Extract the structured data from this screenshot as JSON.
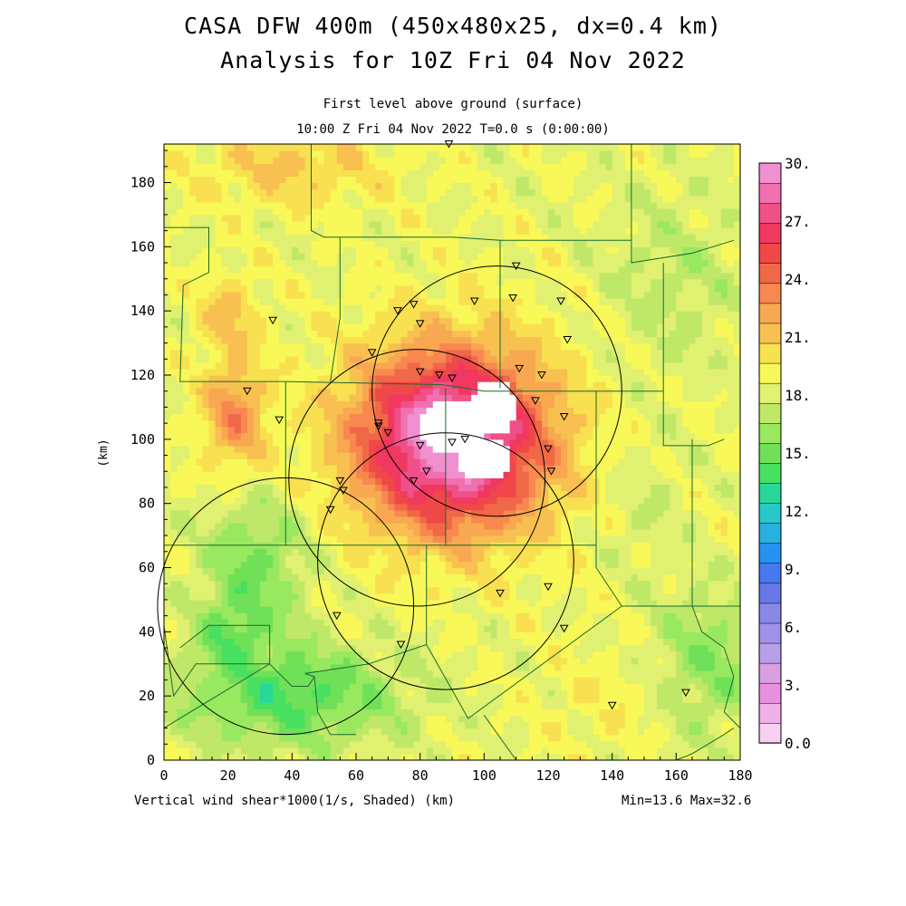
{
  "title": {
    "line1": "CASA DFW 400m (450x480x25, dx=0.4 km)",
    "line2": "Analysis for 10Z Fri 04 Nov 2022"
  },
  "subtitle": {
    "line1": "First level above ground (surface)",
    "line2": "10:00 Z Fri 04 Nov 2022    T=0.0 s (0:00:00)"
  },
  "footer": {
    "xlabel": "Vertical wind shear*1000(1/s, Shaded)  (km)",
    "minmax": "Min=13.6 Max=32.6"
  },
  "chart_data": {
    "type": "heatmap",
    "title": "CASA DFW 400m (450x480x25, dx=0.4 km)",
    "variable": "Vertical wind shear*1000(1/s, Shaded)",
    "xlabel": "(km)",
    "ylabel": "(km)",
    "xlim": [
      0,
      180
    ],
    "ylim": [
      0,
      192
    ],
    "xticks": [
      0,
      20,
      40,
      60,
      80,
      100,
      120,
      140,
      160,
      180
    ],
    "yticks": [
      0,
      20,
      40,
      60,
      80,
      100,
      120,
      140,
      160,
      180
    ],
    "min": 13.6,
    "max": 32.6,
    "colorbar": {
      "labels": [
        "30.",
        "27.",
        "24.",
        "21.",
        "18.",
        "15.",
        "12.",
        "9.",
        "6.",
        "3.",
        "0.0"
      ],
      "colors": [
        "#f8d0f0",
        "#f0b0e8",
        "#e890e0",
        "#d8a0e0",
        "#b8a0e8",
        "#a090e8",
        "#8888e8",
        "#6878e8",
        "#4878f0",
        "#2890f0",
        "#28b0e0",
        "#28c8c8",
        "#28d898",
        "#48e060",
        "#70e058",
        "#98e860",
        "#c0e868",
        "#e0f070",
        "#f8f858",
        "#f8e050",
        "#f8c050",
        "#f8a850",
        "#f88850",
        "#f06848",
        "#f04848",
        "#f03860",
        "#f05088",
        "#f070b0",
        "#f090d0"
      ]
    },
    "shear_field": {
      "background": 19.5,
      "blobs": [
        {
          "x": 90,
          "y": 100,
          "sx": 30,
          "sy": 28,
          "amp": 13
        },
        {
          "x": 22,
          "y": 108,
          "sx": 10,
          "sy": 18,
          "amp": 4.5
        },
        {
          "x": 20,
          "y": 140,
          "sx": 10,
          "sy": 12,
          "amp": 2.5
        },
        {
          "x": 40,
          "y": 185,
          "sx": 30,
          "sy": 12,
          "amp": 2.5
        },
        {
          "x": 28,
          "y": 60,
          "sx": 16,
          "sy": 22,
          "amp": -3.5
        },
        {
          "x": 40,
          "y": 20,
          "sx": 34,
          "sy": 16,
          "amp": -4.5
        },
        {
          "x": 20,
          "y": 40,
          "sx": 10,
          "sy": 10,
          "amp": -2.5
        },
        {
          "x": 170,
          "y": 30,
          "sx": 18,
          "sy": 22,
          "amp": -3
        },
        {
          "x": 160,
          "y": 150,
          "sx": 22,
          "sy": 28,
          "amp": -1.5
        },
        {
          "x": 150,
          "y": 80,
          "sx": 12,
          "sy": 20,
          "amp": -1
        },
        {
          "x": 140,
          "y": 20,
          "sx": 22,
          "sy": 16,
          "amp": 1
        }
      ],
      "white_core": [
        {
          "x": 90,
          "y": 104,
          "sx": 11,
          "sy": 8
        },
        {
          "x": 103,
          "y": 110,
          "sx": 7,
          "sy": 9
        },
        {
          "x": 100,
          "y": 94,
          "sx": 9,
          "sy": 7
        }
      ]
    },
    "radar_rings": [
      {
        "x": 104,
        "y": 115,
        "r": 39
      },
      {
        "x": 79,
        "y": 88,
        "r": 40
      },
      {
        "x": 88,
        "y": 62,
        "r": 40
      },
      {
        "x": 38,
        "y": 48,
        "r": 40
      }
    ],
    "stations": [
      [
        89,
        192
      ],
      [
        110,
        154
      ],
      [
        109,
        144
      ],
      [
        124,
        143
      ],
      [
        97,
        143
      ],
      [
        78,
        142
      ],
      [
        73,
        140
      ],
      [
        80,
        136
      ],
      [
        34,
        137
      ],
      [
        126,
        131
      ],
      [
        65,
        127
      ],
      [
        80,
        121
      ],
      [
        111,
        122
      ],
      [
        86,
        120
      ],
      [
        118,
        120
      ],
      [
        90,
        119
      ],
      [
        26,
        115
      ],
      [
        116,
        112
      ],
      [
        67,
        105
      ],
      [
        36,
        106
      ],
      [
        125,
        107
      ],
      [
        67,
        104
      ],
      [
        70,
        102
      ],
      [
        80,
        98
      ],
      [
        90,
        99
      ],
      [
        94,
        100
      ],
      [
        120,
        97
      ],
      [
        82,
        90
      ],
      [
        121,
        90
      ],
      [
        55,
        87
      ],
      [
        78,
        87
      ],
      [
        56,
        84
      ],
      [
        52,
        78
      ],
      [
        120,
        54
      ],
      [
        105,
        52
      ],
      [
        54,
        45
      ],
      [
        125,
        41
      ],
      [
        74,
        36
      ],
      [
        140,
        17
      ],
      [
        163,
        21
      ]
    ],
    "boundaries": [
      [
        [
          0,
          166
        ],
        [
          14,
          166
        ],
        [
          14,
          152
        ],
        [
          6,
          148
        ],
        [
          5,
          118
        ],
        [
          38,
          118
        ]
      ],
      [
        [
          38,
          118
        ],
        [
          38,
          67
        ],
        [
          0,
          67
        ]
      ],
      [
        [
          38,
          118
        ],
        [
          87,
          117
        ],
        [
          100,
          115
        ],
        [
          135,
          115
        ],
        [
          156,
          115
        ]
      ],
      [
        [
          46,
          192
        ],
        [
          46,
          165
        ],
        [
          50,
          163
        ],
        [
          55,
          163
        ]
      ],
      [
        [
          55,
          163
        ],
        [
          55,
          138
        ],
        [
          52,
          118
        ]
      ],
      [
        [
          55,
          163
        ],
        [
          90,
          163
        ],
        [
          105,
          162
        ]
      ],
      [
        [
          105,
          162
        ],
        [
          105,
          116
        ]
      ],
      [
        [
          105,
          162
        ],
        [
          140,
          162
        ],
        [
          146,
          162
        ]
      ],
      [
        [
          146,
          162
        ],
        [
          146,
          155
        ],
        [
          165,
          158
        ],
        [
          178,
          162
        ]
      ],
      [
        [
          146,
          192
        ],
        [
          146,
          162
        ]
      ],
      [
        [
          156,
          155
        ],
        [
          156,
          115
        ],
        [
          156,
          98
        ],
        [
          170,
          98
        ],
        [
          175,
          100
        ]
      ],
      [
        [
          88,
          116
        ],
        [
          88,
          67
        ],
        [
          38,
          67
        ]
      ],
      [
        [
          88,
          67
        ],
        [
          135,
          67
        ],
        [
          135,
          115
        ]
      ],
      [
        [
          165,
          100
        ],
        [
          165,
          48
        ]
      ],
      [
        [
          135,
          67
        ],
        [
          135,
          60
        ],
        [
          143,
          48
        ],
        [
          165,
          48
        ],
        [
          180,
          48
        ]
      ],
      [
        [
          82,
          67
        ],
        [
          82,
          36
        ],
        [
          64,
          30
        ],
        [
          44,
          27
        ]
      ],
      [
        [
          0,
          42
        ],
        [
          3,
          20
        ],
        [
          10,
          30
        ],
        [
          33,
          30
        ],
        [
          33,
          42
        ],
        [
          14,
          42
        ],
        [
          5,
          35
        ]
      ],
      [
        [
          33,
          30
        ],
        [
          40,
          23
        ],
        [
          45,
          23
        ],
        [
          47,
          26
        ],
        [
          44,
          27
        ]
      ],
      [
        [
          0,
          10
        ],
        [
          33,
          30
        ]
      ],
      [
        [
          47,
          26
        ],
        [
          48,
          15
        ],
        [
          52,
          8
        ],
        [
          60,
          8
        ]
      ],
      [
        [
          82,
          36
        ],
        [
          95,
          13
        ],
        [
          143,
          48
        ]
      ],
      [
        [
          100,
          14
        ],
        [
          110,
          0
        ]
      ],
      [
        [
          178,
          10
        ],
        [
          175,
          8
        ],
        [
          165,
          2
        ],
        [
          160,
          0
        ]
      ],
      [
        [
          165,
          48
        ],
        [
          168,
          40
        ],
        [
          175,
          35
        ],
        [
          178,
          26
        ],
        [
          175,
          15
        ],
        [
          180,
          10
        ]
      ]
    ]
  }
}
